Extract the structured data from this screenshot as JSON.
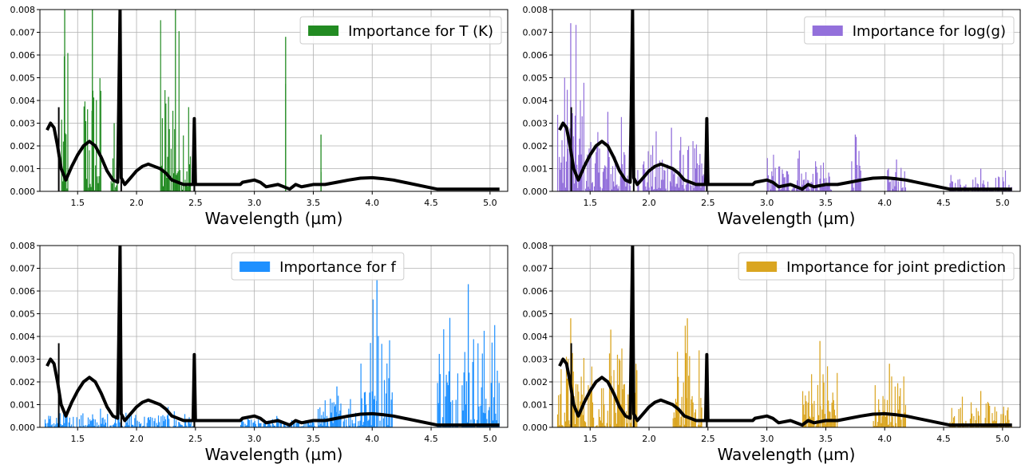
{
  "chart_data": [
    {
      "type": "bar",
      "legend": "Importance for T (K)",
      "legend_position": "upper-right",
      "color": "#228b22",
      "xlabel": "Wavelength (µm)",
      "ylabel": "",
      "xlim": [
        1.18,
        5.15
      ],
      "ylim": [
        0,
        0.008
      ],
      "grid": true,
      "xticks": [
        "1.5",
        "2.0",
        "2.5",
        "3.0",
        "3.5",
        "4.0",
        "4.5",
        "5.0"
      ],
      "yticks": [
        "0.000",
        "0.001",
        "0.002",
        "0.003",
        "0.004",
        "0.005",
        "0.006",
        "0.007",
        "0.008"
      ],
      "importance_regions": [
        {
          "x0": 1.36,
          "x1": 1.42,
          "peak": 0.008
        },
        {
          "x0": 1.55,
          "x1": 1.7,
          "peak": 0.008
        },
        {
          "x0": 1.78,
          "x1": 1.84,
          "peak": 0.003
        },
        {
          "x0": 2.2,
          "x1": 2.46,
          "peak": 0.008
        },
        {
          "x0": 3.26,
          "x1": 3.27,
          "peak": 0.0068
        },
        {
          "x0": 3.56,
          "x1": 3.57,
          "peak": 0.0025
        }
      ]
    },
    {
      "type": "bar",
      "legend": "Importance for log(g)",
      "legend_position": "upper-right",
      "color": "#9370db",
      "xlabel": "Wavelength (µm)",
      "ylabel": "",
      "xlim": [
        1.18,
        5.15
      ],
      "ylim": [
        0,
        0.008
      ],
      "grid": true,
      "xticks": [
        "1.5",
        "2.0",
        "2.5",
        "3.0",
        "3.5",
        "4.0",
        "4.5",
        "5.0"
      ],
      "yticks": [
        "0.000",
        "0.001",
        "0.002",
        "0.003",
        "0.004",
        "0.005",
        "0.006",
        "0.007",
        "0.008"
      ],
      "importance_regions": [
        {
          "x0": 1.22,
          "x1": 1.45,
          "peak": 0.0074
        },
        {
          "x0": 1.45,
          "x1": 1.85,
          "peak": 0.0035
        },
        {
          "x0": 1.9,
          "x1": 2.48,
          "peak": 0.0028
        },
        {
          "x0": 3.0,
          "x1": 3.55,
          "peak": 0.0018
        },
        {
          "x0": 3.7,
          "x1": 3.8,
          "peak": 0.0025
        },
        {
          "x0": 4.02,
          "x1": 4.18,
          "peak": 0.0014
        },
        {
          "x0": 4.55,
          "x1": 5.08,
          "peak": 0.001
        }
      ]
    },
    {
      "type": "bar",
      "legend": "Importance for f",
      "legend_position": "upper-center",
      "color": "#1e90ff",
      "xlabel": "Wavelength (µm)",
      "ylabel": "",
      "xlim": [
        1.18,
        5.15
      ],
      "ylim": [
        0,
        0.008
      ],
      "grid": true,
      "xticks": [
        "1.5",
        "2.0",
        "2.5",
        "3.0",
        "3.5",
        "4.0",
        "4.5",
        "5.0"
      ],
      "yticks": [
        "0.000",
        "0.001",
        "0.002",
        "0.003",
        "0.004",
        "0.005",
        "0.006",
        "0.007",
        "0.008"
      ],
      "importance_regions": [
        {
          "x0": 1.22,
          "x1": 2.48,
          "peak": 0.0009
        },
        {
          "x0": 2.88,
          "x1": 3.5,
          "peak": 0.0005
        },
        {
          "x0": 3.5,
          "x1": 3.9,
          "peak": 0.0018
        },
        {
          "x0": 3.9,
          "x1": 4.18,
          "peak": 0.0065
        },
        {
          "x0": 4.55,
          "x1": 5.08,
          "peak": 0.0063
        }
      ]
    },
    {
      "type": "bar",
      "legend": "Importance for joint prediction",
      "legend_position": "upper-right",
      "color": "#daa520",
      "xlabel": "Wavelength (µm)",
      "ylabel": "",
      "xlim": [
        1.18,
        5.15
      ],
      "ylim": [
        0,
        0.008
      ],
      "grid": true,
      "xticks": [
        "1.5",
        "2.0",
        "2.5",
        "3.0",
        "3.5",
        "4.0",
        "4.5",
        "5.0"
      ],
      "yticks": [
        "0.000",
        "0.001",
        "0.002",
        "0.003",
        "0.004",
        "0.005",
        "0.006",
        "0.007",
        "0.008"
      ],
      "importance_regions": [
        {
          "x0": 1.22,
          "x1": 1.45,
          "peak": 0.0048
        },
        {
          "x0": 1.45,
          "x1": 1.9,
          "peak": 0.0043
        },
        {
          "x0": 2.2,
          "x1": 2.45,
          "peak": 0.0048
        },
        {
          "x0": 3.3,
          "x1": 3.6,
          "peak": 0.0038
        },
        {
          "x0": 3.9,
          "x1": 4.18,
          "peak": 0.0028
        },
        {
          "x0": 4.55,
          "x1": 5.08,
          "peak": 0.0016
        }
      ]
    }
  ],
  "spectrum": {
    "color": "#000000",
    "points": [
      [
        1.24,
        0.0027
      ],
      [
        1.27,
        0.003
      ],
      [
        1.3,
        0.0028
      ],
      [
        1.33,
        0.002
      ],
      [
        1.36,
        0.001
      ],
      [
        1.4,
        0.0005
      ],
      [
        1.45,
        0.0011
      ],
      [
        1.5,
        0.0016
      ],
      [
        1.55,
        0.002
      ],
      [
        1.6,
        0.0022
      ],
      [
        1.65,
        0.002
      ],
      [
        1.7,
        0.0015
      ],
      [
        1.75,
        0.0009
      ],
      [
        1.8,
        0.0005
      ],
      [
        1.84,
        0.0004
      ],
      [
        1.86,
        0.008
      ],
      [
        1.87,
        0.0006
      ],
      [
        1.9,
        0.0003
      ],
      [
        1.95,
        0.0006
      ],
      [
        2.0,
        0.0009
      ],
      [
        2.05,
        0.0011
      ],
      [
        2.1,
        0.0012
      ],
      [
        2.15,
        0.0011
      ],
      [
        2.2,
        0.001
      ],
      [
        2.25,
        0.0008
      ],
      [
        2.3,
        0.0005
      ],
      [
        2.35,
        0.0004
      ],
      [
        2.4,
        0.0003
      ],
      [
        2.45,
        0.0003
      ],
      [
        2.48,
        0.0003
      ],
      [
        2.49,
        0.0032
      ],
      [
        2.5,
        0.0003
      ],
      [
        2.88,
        0.0003
      ],
      [
        2.9,
        0.0004
      ],
      [
        3.0,
        0.0005
      ],
      [
        3.05,
        0.0004
      ],
      [
        3.1,
        0.0002
      ],
      [
        3.2,
        0.0003
      ],
      [
        3.3,
        0.0001
      ],
      [
        3.35,
        0.0003
      ],
      [
        3.4,
        0.0002
      ],
      [
        3.5,
        0.0003
      ],
      [
        3.6,
        0.0003
      ],
      [
        3.7,
        0.0004
      ],
      [
        3.8,
        0.0005
      ],
      [
        3.9,
        0.00058
      ],
      [
        4.0,
        0.0006
      ],
      [
        4.1,
        0.00055
      ],
      [
        4.18,
        0.0005
      ],
      [
        4.55,
        0.0001
      ],
      [
        4.7,
        0.0001
      ],
      [
        4.9,
        0.0001
      ],
      [
        5.08,
        0.0001
      ]
    ],
    "narrow_spikes": [
      {
        "x": 1.34,
        "y": 0.0037
      },
      {
        "x": 1.87,
        "y": 0.0031
      },
      {
        "x": 2.49,
        "y": 0.0032
      }
    ]
  }
}
